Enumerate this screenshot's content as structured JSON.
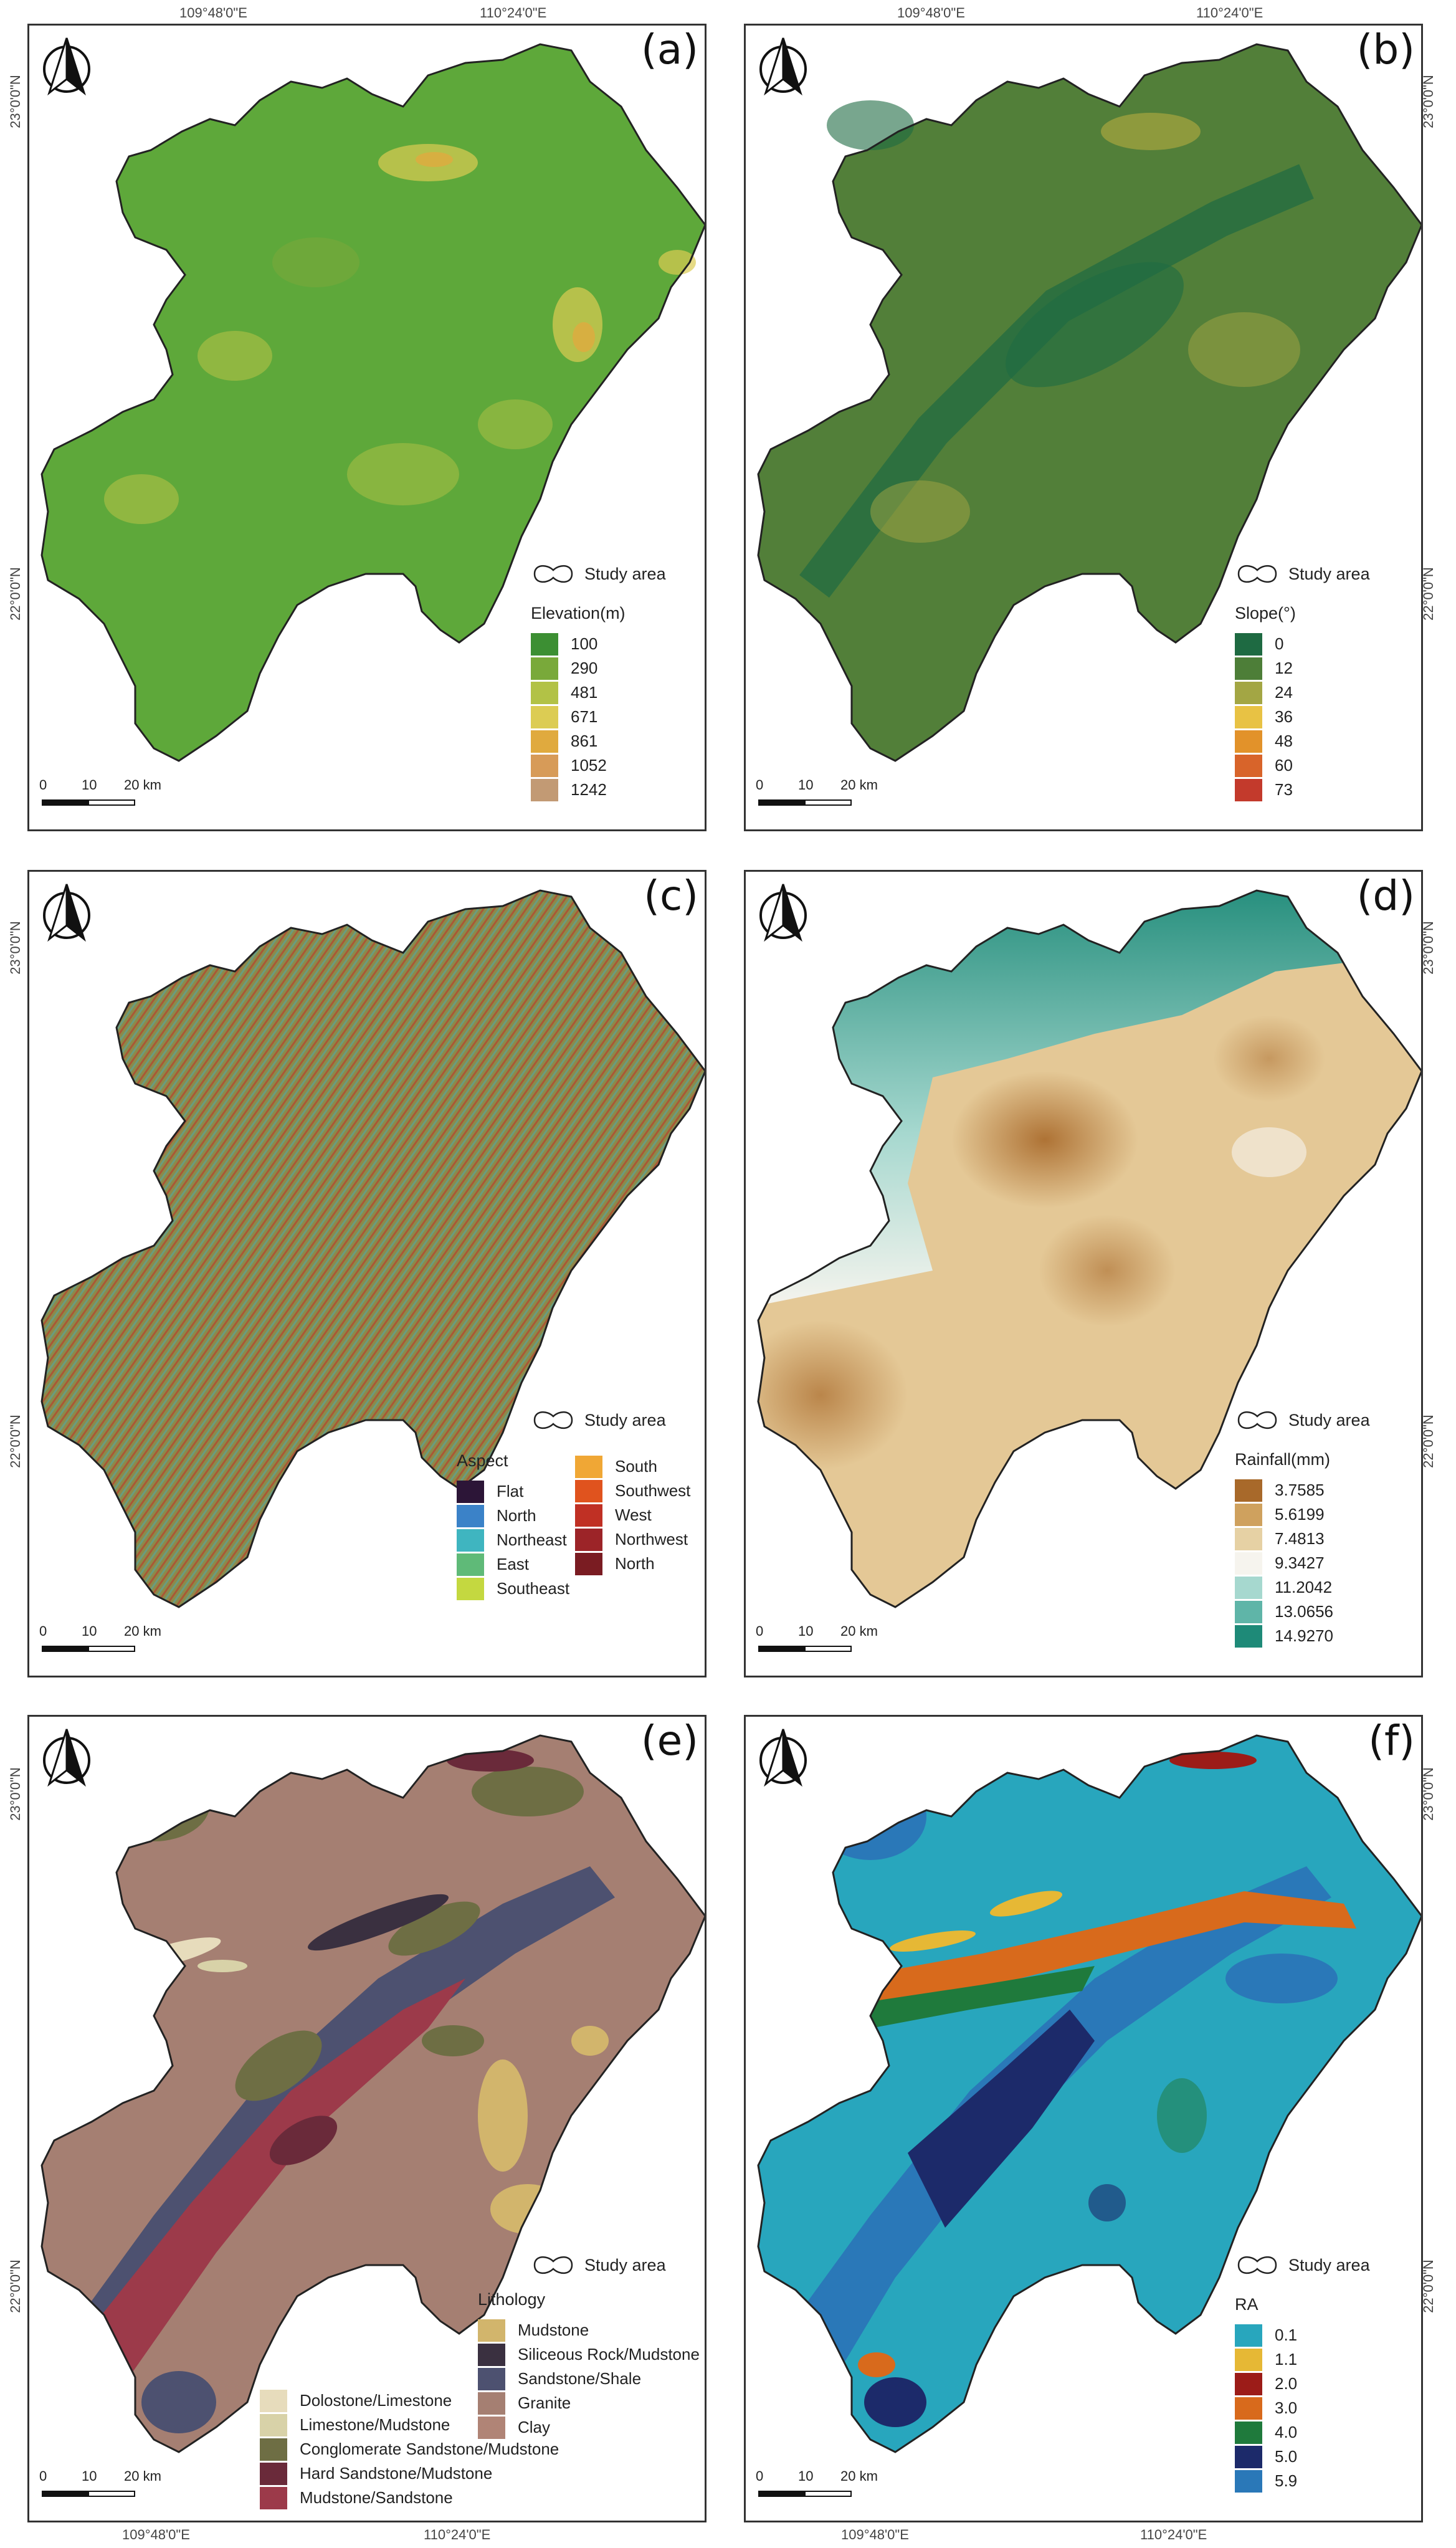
{
  "coords": {
    "top_lon": [
      "109°48'0\"E",
      "110°24'0\"E"
    ],
    "bottom_lon": [
      "109°48'0\"E",
      "110°24'0\"E"
    ],
    "lat": [
      "23°0'0\"N",
      "22°0'0\"N"
    ]
  },
  "common": {
    "study_area": "Study area",
    "scale": {
      "t0": "0",
      "t1": "10",
      "t2": "20 km"
    }
  },
  "panels": {
    "a": {
      "label": "(a)",
      "legend_title": "Elevation(m)",
      "items": [
        {
          "label": "100",
          "color": "#3c8f33"
        },
        {
          "label": "290",
          "color": "#79a93a"
        },
        {
          "label": "481",
          "color": "#b2c246"
        },
        {
          "label": "671",
          "color": "#dccc53"
        },
        {
          "label": "861",
          "color": "#e0aa3e"
        },
        {
          "label": "1052",
          "color": "#d79b58"
        },
        {
          "label": "1242",
          "color": "#c29a74"
        }
      ],
      "fill": "#5ea83a"
    },
    "b": {
      "label": "(b)",
      "legend_title": "Slope(°)",
      "items": [
        {
          "label": "0",
          "color": "#1e6a42"
        },
        {
          "label": "12",
          "color": "#4d7e38"
        },
        {
          "label": "24",
          "color": "#a3a644"
        },
        {
          "label": "36",
          "color": "#e8c244"
        },
        {
          "label": "48",
          "color": "#e2922a"
        },
        {
          "label": "60",
          "color": "#d8642a"
        },
        {
          "label": "73",
          "color": "#c33a2c"
        }
      ],
      "fill": "#527f39"
    },
    "c": {
      "label": "(c)",
      "legend_title": "Aspect",
      "items_left": [
        {
          "label": "Flat",
          "color": "#2c1537"
        },
        {
          "label": "North",
          "color": "#3b82c8"
        },
        {
          "label": "Northeast",
          "color": "#3fb5c0"
        },
        {
          "label": "East",
          "color": "#5fba78"
        },
        {
          "label": "Southeast",
          "color": "#c4d840"
        }
      ],
      "items_right": [
        {
          "label": "South",
          "color": "#f0a735"
        },
        {
          "label": "Southwest",
          "color": "#e0531e"
        },
        {
          "label": "West",
          "color": "#c03024"
        },
        {
          "label": "Northwest",
          "color": "#9c2428"
        },
        {
          "label": "North",
          "color": "#7a1c22"
        }
      ],
      "fill": "#8c8a4a"
    },
    "d": {
      "label": "(d)",
      "legend_title": "Rainfall(mm)",
      "items": [
        {
          "label": "3.7585",
          "color": "#a8692a"
        },
        {
          "label": "5.6199",
          "color": "#cfa15e"
        },
        {
          "label": "7.4813",
          "color": "#e6d1a4"
        },
        {
          "label": "9.3427",
          "color": "#f6f4ee"
        },
        {
          "label": "11.2042",
          "color": "#a6d8cf"
        },
        {
          "label": "13.0656",
          "color": "#5fb5a8"
        },
        {
          "label": "14.9270",
          "color": "#1e8a78"
        }
      ],
      "fill": "#e4c896"
    },
    "e": {
      "label": "(e)",
      "legend_title": "Lithology",
      "items_upper": [
        {
          "label": "Mudstone",
          "color": "#d2b56c"
        },
        {
          "label": "Siliceous Rock/Mudstone",
          "color": "#3a3040"
        },
        {
          "label": "Sandstone/Shale",
          "color": "#4d5170"
        },
        {
          "label": "Granite",
          "color": "#a57f72"
        },
        {
          "label": "Clay",
          "color": "#b08476"
        }
      ],
      "items_lower": [
        {
          "label": "Dolostone/Limestone",
          "color": "#e7dcbc"
        },
        {
          "label": "Limestone/Mudstone",
          "color": "#d8d2a8"
        },
        {
          "label": "Conglomerate Sandstone/Mudstone",
          "color": "#6e6e44"
        },
        {
          "label": "Hard Sandstone/Mudstone",
          "color": "#6a2a3a"
        },
        {
          "label": "Mudstone/Sandstone",
          "color": "#9c3a4a"
        }
      ],
      "fill": "#a57f72"
    },
    "f": {
      "label": "(f)",
      "legend_title": "RA",
      "items": [
        {
          "label": "0.1",
          "color": "#28a6bd"
        },
        {
          "label": "1.1",
          "color": "#e6b835"
        },
        {
          "label": "2.0",
          "color": "#9c1c18"
        },
        {
          "label": "3.0",
          "color": "#d86a1c"
        },
        {
          "label": "4.0",
          "color": "#1f7a3c"
        },
        {
          "label": "5.0",
          "color": "#1c2a6a"
        },
        {
          "label": "5.9",
          "color": "#2a78b8"
        }
      ],
      "fill": "#28a6bd"
    }
  }
}
